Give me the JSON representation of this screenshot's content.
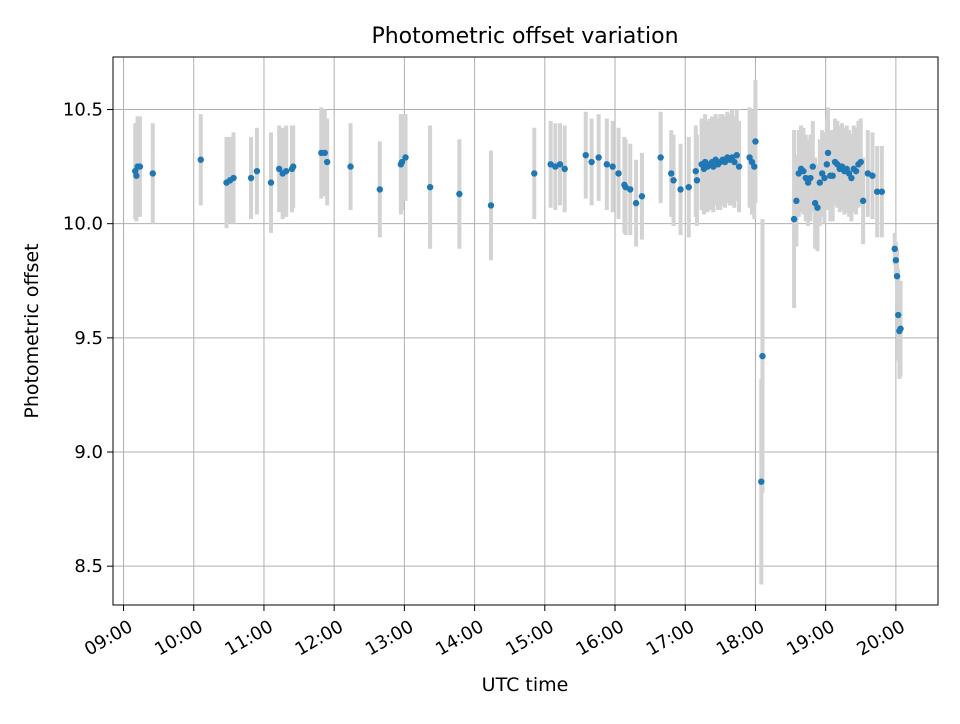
{
  "chart_data": {
    "type": "scatter",
    "title": "Photometric offset variation",
    "xlabel": "UTC time",
    "ylabel": "Photometric offset",
    "xlim": [
      "08:51",
      "20:36"
    ],
    "ylim": [
      8.33,
      10.73
    ],
    "xticks": [
      "09:00",
      "10:00",
      "11:00",
      "12:00",
      "13:00",
      "14:00",
      "15:00",
      "16:00",
      "17:00",
      "18:00",
      "19:00",
      "20:00"
    ],
    "yticks": [
      "8.5",
      "9.0",
      "9.5",
      "10.0",
      "10.5"
    ],
    "grid": true,
    "colors": {
      "points": "#1f77b4",
      "errorbars": "#d3d3d3",
      "grid": "#b0b0b0"
    },
    "series": [
      {
        "points": [
          {
            "t": "09:10",
            "y": 10.23,
            "err": 0.21
          },
          {
            "t": "09:11",
            "y": 10.21,
            "err": 0.2
          },
          {
            "t": "09:12",
            "y": 10.25,
            "err": 0.22
          },
          {
            "t": "09:14",
            "y": 10.25,
            "err": 0.22
          },
          {
            "t": "09:25",
            "y": 10.22,
            "err": 0.22
          },
          {
            "t": "10:06",
            "y": 10.28,
            "err": 0.2
          },
          {
            "t": "10:28",
            "y": 10.18,
            "err": 0.2
          },
          {
            "t": "10:31",
            "y": 10.19,
            "err": 0.19
          },
          {
            "t": "10:34",
            "y": 10.2,
            "err": 0.2
          },
          {
            "t": "10:49",
            "y": 10.2,
            "err": 0.18
          },
          {
            "t": "10:54",
            "y": 10.23,
            "err": 0.19
          },
          {
            "t": "11:06",
            "y": 10.18,
            "err": 0.22
          },
          {
            "t": "11:13",
            "y": 10.24,
            "err": 0.19
          },
          {
            "t": "11:16",
            "y": 10.22,
            "err": 0.2
          },
          {
            "t": "11:19",
            "y": 10.23,
            "err": 0.2
          },
          {
            "t": "11:24",
            "y": 10.24,
            "err": 0.19
          },
          {
            "t": "11:25",
            "y": 10.25,
            "err": 0.18
          },
          {
            "t": "11:49",
            "y": 10.31,
            "err": 0.2
          },
          {
            "t": "11:52",
            "y": 10.31,
            "err": 0.19
          },
          {
            "t": "11:54",
            "y": 10.27,
            "err": 0.19
          },
          {
            "t": "12:14",
            "y": 10.25,
            "err": 0.19
          },
          {
            "t": "12:39",
            "y": 10.15,
            "err": 0.21
          },
          {
            "t": "12:57",
            "y": 10.26,
            "err": 0.22
          },
          {
            "t": "12:58",
            "y": 10.27,
            "err": 0.21
          },
          {
            "t": "13:01",
            "y": 10.29,
            "err": 0.19
          },
          {
            "t": "13:22",
            "y": 10.16,
            "err": 0.27
          },
          {
            "t": "13:47",
            "y": 10.13,
            "err": 0.24
          },
          {
            "t": "14:14",
            "y": 10.08,
            "err": 0.24
          },
          {
            "t": "14:51",
            "y": 10.22,
            "err": 0.2
          },
          {
            "t": "15:05",
            "y": 10.26,
            "err": 0.19
          },
          {
            "t": "15:09",
            "y": 10.25,
            "err": 0.19
          },
          {
            "t": "15:13",
            "y": 10.26,
            "err": 0.18
          },
          {
            "t": "15:17",
            "y": 10.24,
            "err": 0.19
          },
          {
            "t": "15:35",
            "y": 10.3,
            "err": 0.19
          },
          {
            "t": "15:40",
            "y": 10.27,
            "err": 0.19
          },
          {
            "t": "15:46",
            "y": 10.29,
            "err": 0.19
          },
          {
            "t": "15:53",
            "y": 10.26,
            "err": 0.2
          },
          {
            "t": "15:58",
            "y": 10.25,
            "err": 0.2
          },
          {
            "t": "16:03",
            "y": 10.22,
            "err": 0.2
          },
          {
            "t": "16:08",
            "y": 10.17,
            "err": 0.21
          },
          {
            "t": "16:09",
            "y": 10.16,
            "err": 0.21
          },
          {
            "t": "16:13",
            "y": 10.15,
            "err": 0.2
          },
          {
            "t": "16:18",
            "y": 10.09,
            "err": 0.19
          },
          {
            "t": "16:23",
            "y": 10.12,
            "err": 0.19
          },
          {
            "t": "16:39",
            "y": 10.29,
            "err": 0.2
          },
          {
            "t": "16:48",
            "y": 10.22,
            "err": 0.19
          },
          {
            "t": "16:50",
            "y": 10.19,
            "err": 0.2
          },
          {
            "t": "16:56",
            "y": 10.15,
            "err": 0.2
          },
          {
            "t": "17:03",
            "y": 10.16,
            "err": 0.22
          },
          {
            "t": "17:09",
            "y": 10.23,
            "err": 0.2
          },
          {
            "t": "17:10",
            "y": 10.19,
            "err": 0.2
          },
          {
            "t": "17:14",
            "y": 10.26,
            "err": 0.2
          },
          {
            "t": "17:16",
            "y": 10.24,
            "err": 0.2
          },
          {
            "t": "17:17",
            "y": 10.27,
            "err": 0.21
          },
          {
            "t": "17:19",
            "y": 10.25,
            "err": 0.2
          },
          {
            "t": "17:21",
            "y": 10.26,
            "err": 0.2
          },
          {
            "t": "17:23",
            "y": 10.27,
            "err": 0.2
          },
          {
            "t": "17:24",
            "y": 10.25,
            "err": 0.2
          },
          {
            "t": "17:26",
            "y": 10.28,
            "err": 0.2
          },
          {
            "t": "17:28",
            "y": 10.26,
            "err": 0.2
          },
          {
            "t": "17:30",
            "y": 10.27,
            "err": 0.21
          },
          {
            "t": "17:32",
            "y": 10.28,
            "err": 0.2
          },
          {
            "t": "17:34",
            "y": 10.27,
            "err": 0.2
          },
          {
            "t": "17:36",
            "y": 10.29,
            "err": 0.2
          },
          {
            "t": "17:38",
            "y": 10.28,
            "err": 0.2
          },
          {
            "t": "17:40",
            "y": 10.29,
            "err": 0.21
          },
          {
            "t": "17:42",
            "y": 10.27,
            "err": 0.2
          },
          {
            "t": "17:44",
            "y": 10.3,
            "err": 0.2
          },
          {
            "t": "17:46",
            "y": 10.25,
            "err": 0.2
          },
          {
            "t": "17:55",
            "y": 10.29,
            "err": 0.22
          },
          {
            "t": "17:57",
            "y": 10.27,
            "err": 0.23
          },
          {
            "t": "17:59",
            "y": 10.25,
            "err": 0.23
          },
          {
            "t": "18:00",
            "y": 10.36,
            "err": 0.27
          },
          {
            "t": "18:06",
            "y": 9.42,
            "err": 0.6
          },
          {
            "t": "18:05",
            "y": 8.87,
            "err": 0.45
          },
          {
            "t": "18:33",
            "y": 10.02,
            "err": 0.39
          },
          {
            "t": "18:35",
            "y": 10.1,
            "err": 0.2
          },
          {
            "t": "18:37",
            "y": 10.22,
            "err": 0.19
          },
          {
            "t": "18:39",
            "y": 10.24,
            "err": 0.19
          },
          {
            "t": "18:41",
            "y": 10.23,
            "err": 0.19
          },
          {
            "t": "18:43",
            "y": 10.2,
            "err": 0.19
          },
          {
            "t": "18:45",
            "y": 10.18,
            "err": 0.19
          },
          {
            "t": "18:47",
            "y": 10.2,
            "err": 0.19
          },
          {
            "t": "18:49",
            "y": 10.25,
            "err": 0.2
          },
          {
            "t": "18:51",
            "y": 10.09,
            "err": 0.2
          },
          {
            "t": "18:53",
            "y": 10.07,
            "err": 0.19
          },
          {
            "t": "18:55",
            "y": 10.18,
            "err": 0.19
          },
          {
            "t": "18:57",
            "y": 10.22,
            "err": 0.19
          },
          {
            "t": "18:59",
            "y": 10.2,
            "err": 0.2
          },
          {
            "t": "19:01",
            "y": 10.26,
            "err": 0.2
          },
          {
            "t": "19:02",
            "y": 10.31,
            "err": 0.2
          },
          {
            "t": "19:04",
            "y": 10.21,
            "err": 0.2
          },
          {
            "t": "19:06",
            "y": 10.21,
            "err": 0.2
          },
          {
            "t": "19:08",
            "y": 10.27,
            "err": 0.19
          },
          {
            "t": "19:10",
            "y": 10.26,
            "err": 0.19
          },
          {
            "t": "19:12",
            "y": 10.24,
            "err": 0.19
          },
          {
            "t": "19:14",
            "y": 10.25,
            "err": 0.19
          },
          {
            "t": "19:16",
            "y": 10.23,
            "err": 0.19
          },
          {
            "t": "19:18",
            "y": 10.24,
            "err": 0.19
          },
          {
            "t": "19:20",
            "y": 10.22,
            "err": 0.19
          },
          {
            "t": "19:22",
            "y": 10.2,
            "err": 0.19
          },
          {
            "t": "19:24",
            "y": 10.24,
            "err": 0.19
          },
          {
            "t": "19:26",
            "y": 10.23,
            "err": 0.19
          },
          {
            "t": "19:28",
            "y": 10.26,
            "err": 0.19
          },
          {
            "t": "19:30",
            "y": 10.27,
            "err": 0.19
          },
          {
            "t": "19:32",
            "y": 10.1,
            "err": 0.19
          },
          {
            "t": "19:36",
            "y": 10.22,
            "err": 0.19
          },
          {
            "t": "19:40",
            "y": 10.21,
            "err": 0.19
          },
          {
            "t": "19:44",
            "y": 10.14,
            "err": 0.2
          },
          {
            "t": "19:48",
            "y": 10.14,
            "err": 0.2
          },
          {
            "t": "19:59",
            "y": 9.89,
            "err": 0.07
          },
          {
            "t": "20:00",
            "y": 9.84,
            "err": 0.08
          },
          {
            "t": "20:01",
            "y": 9.77,
            "err": 0.12
          },
          {
            "t": "20:02",
            "y": 9.6,
            "err": 0.2
          },
          {
            "t": "20:03",
            "y": 9.53,
            "err": 0.21
          },
          {
            "t": "20:04",
            "y": 9.54,
            "err": 0.21
          }
        ]
      }
    ]
  }
}
